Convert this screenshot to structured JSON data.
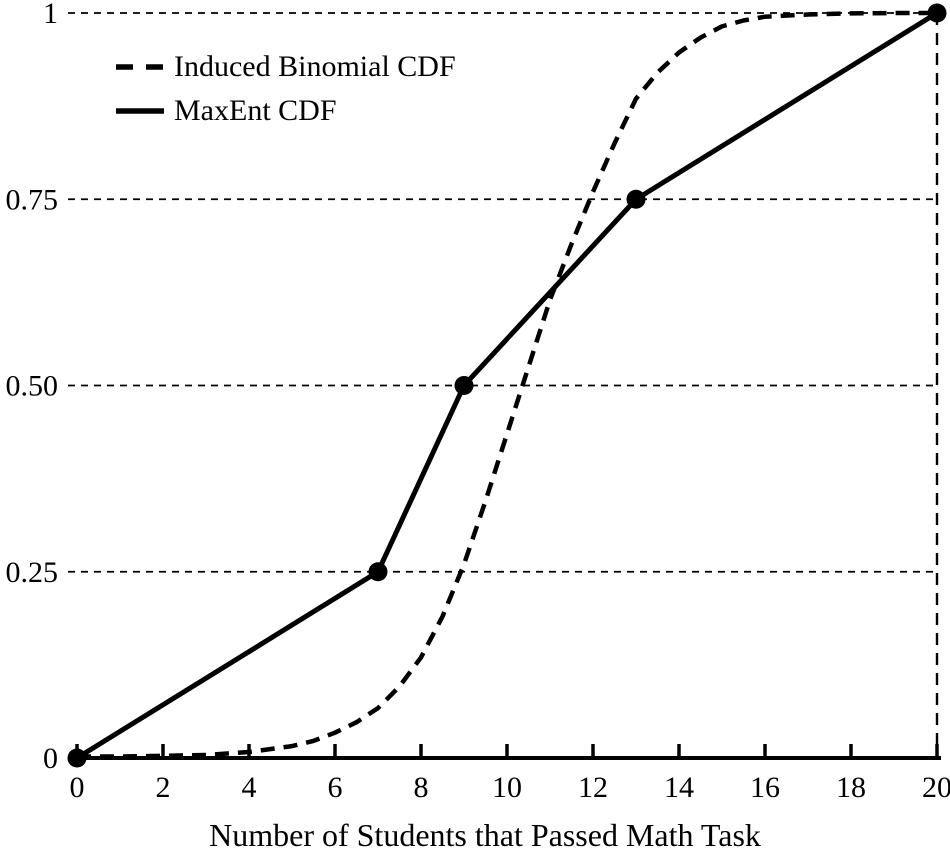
{
  "chart_data": {
    "type": "line",
    "xlabel": "Number of Students that Passed Math Task",
    "ylabel": "",
    "xlim": [
      0,
      20
    ],
    "ylim": [
      0,
      1
    ],
    "grid": "dashed-horizontal",
    "x_ticks": [
      0,
      2,
      4,
      6,
      8,
      10,
      12,
      14,
      16,
      18,
      20
    ],
    "y_ticks": [
      {
        "value": 0,
        "label": "0"
      },
      {
        "value": 0.25,
        "label": "0.25"
      },
      {
        "value": 0.5,
        "label": "0.50"
      },
      {
        "value": 0.75,
        "label": "0.75"
      },
      {
        "value": 1,
        "label": "1"
      }
    ],
    "right_guide_x": 20,
    "legend": {
      "position": "top-left",
      "border": false
    },
    "colors": {
      "line": "#000000",
      "background": "#ffffff"
    },
    "series": [
      {
        "name": "Induced Binomial CDF",
        "style": "dashed",
        "markers": false,
        "points": [
          [
            0,
            0.002
          ],
          [
            1,
            0.002
          ],
          [
            2,
            0.003
          ],
          [
            3,
            0.004
          ],
          [
            4,
            0.008
          ],
          [
            5,
            0.016
          ],
          [
            5.5,
            0.023
          ],
          [
            6,
            0.034
          ],
          [
            6.5,
            0.048
          ],
          [
            7,
            0.067
          ],
          [
            7.5,
            0.096
          ],
          [
            8,
            0.135
          ],
          [
            8.5,
            0.19
          ],
          [
            9,
            0.26
          ],
          [
            9.5,
            0.345
          ],
          [
            10,
            0.435
          ],
          [
            10.5,
            0.525
          ],
          [
            11,
            0.615
          ],
          [
            11.5,
            0.69
          ],
          [
            12,
            0.76
          ],
          [
            12.5,
            0.825
          ],
          [
            13,
            0.885
          ],
          [
            13.5,
            0.92
          ],
          [
            14,
            0.947
          ],
          [
            14.5,
            0.967
          ],
          [
            15,
            0.982
          ],
          [
            15.5,
            0.99
          ],
          [
            16,
            0.995
          ],
          [
            17,
            0.998
          ],
          [
            18,
            0.9995
          ],
          [
            19,
            1
          ],
          [
            20,
            1
          ]
        ]
      },
      {
        "name": "MaxEnt CDF",
        "style": "solid",
        "markers": true,
        "points": [
          [
            0,
            0
          ],
          [
            7,
            0.25
          ],
          [
            9,
            0.5
          ],
          [
            13,
            0.75
          ],
          [
            20,
            1
          ]
        ]
      }
    ]
  }
}
